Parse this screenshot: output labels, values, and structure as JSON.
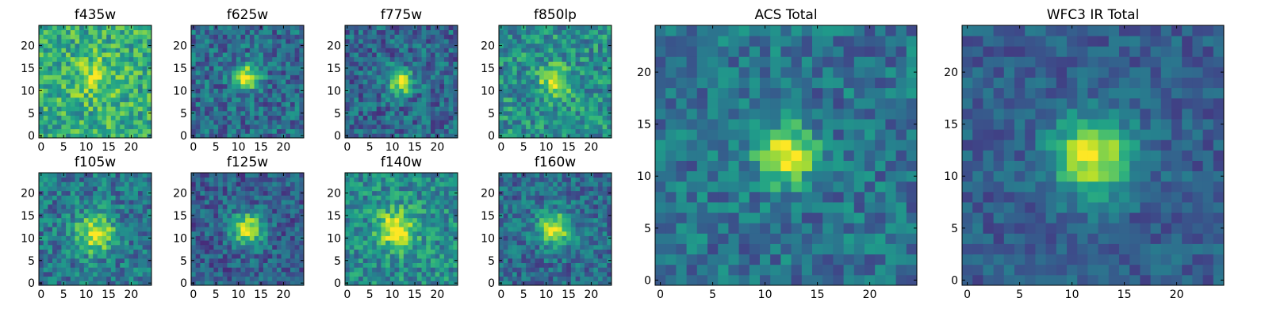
{
  "colormap": "viridis",
  "chart_data": [
    {
      "type": "heatmap",
      "title": "f435w",
      "peak": [
        12,
        13
      ],
      "spread": 3.2,
      "amp": 0.25,
      "base": 0.62,
      "noise": 0.22,
      "xticks": [
        0,
        5,
        10,
        15,
        20
      ],
      "yticks": [
        0,
        5,
        10,
        15,
        20
      ],
      "ylim": [
        -0.5,
        24.5
      ],
      "xlim": [
        -0.5,
        24.5
      ]
    },
    {
      "type": "heatmap",
      "title": "f625w",
      "peak": [
        12,
        13
      ],
      "spread": 2.0,
      "amp": 0.6,
      "base": 0.35,
      "noise": 0.2,
      "xticks": [
        0,
        5,
        10,
        15,
        20
      ],
      "yticks": [
        0,
        5,
        10,
        15,
        20
      ],
      "ylim": [
        -0.5,
        24.5
      ],
      "xlim": [
        -0.5,
        24.5
      ]
    },
    {
      "type": "heatmap",
      "title": "f775w",
      "peak": [
        12,
        12
      ],
      "spread": 2.0,
      "amp": 0.65,
      "base": 0.33,
      "noise": 0.2,
      "xticks": [
        0,
        5,
        10,
        15,
        20
      ],
      "yticks": [
        0,
        5,
        10,
        15,
        20
      ],
      "ylim": [
        -0.5,
        24.5
      ],
      "xlim": [
        -0.5,
        24.5
      ]
    },
    {
      "type": "heatmap",
      "title": "f850lp",
      "peak": [
        12,
        12
      ],
      "spread": 2.4,
      "amp": 0.45,
      "base": 0.5,
      "noise": 0.22,
      "xticks": [
        0,
        5,
        10,
        15,
        20
      ],
      "yticks": [
        0,
        5,
        10,
        15,
        20
      ],
      "ylim": [
        -0.5,
        24.5
      ],
      "xlim": [
        -0.5,
        24.5
      ]
    },
    {
      "type": "heatmap",
      "title": "f105w",
      "peak": [
        12,
        11
      ],
      "spread": 3.0,
      "amp": 0.55,
      "base": 0.4,
      "noise": 0.2,
      "xticks": [
        0,
        5,
        10,
        15,
        20
      ],
      "yticks": [
        0,
        5,
        10,
        15,
        20
      ],
      "ylim": [
        -0.5,
        24.5
      ],
      "xlim": [
        -0.5,
        24.5
      ]
    },
    {
      "type": "heatmap",
      "title": "f125w",
      "peak": [
        12,
        12
      ],
      "spread": 2.6,
      "amp": 0.62,
      "base": 0.3,
      "noise": 0.18,
      "xticks": [
        0,
        5,
        10,
        15,
        20
      ],
      "yticks": [
        0,
        5,
        10,
        15,
        20
      ],
      "ylim": [
        -0.5,
        24.5
      ],
      "xlim": [
        -0.5,
        24.5
      ]
    },
    {
      "type": "heatmap",
      "title": "f140w",
      "peak": [
        11,
        12
      ],
      "spread": 3.0,
      "amp": 0.5,
      "base": 0.48,
      "noise": 0.2,
      "xticks": [
        0,
        5,
        10,
        15,
        20
      ],
      "yticks": [
        0,
        5,
        10,
        15,
        20
      ],
      "ylim": [
        -0.5,
        24.5
      ],
      "xlim": [
        -0.5,
        24.5
      ]
    },
    {
      "type": "heatmap",
      "title": "f160w",
      "peak": [
        12,
        12
      ],
      "spread": 2.6,
      "amp": 0.6,
      "base": 0.35,
      "noise": 0.18,
      "xticks": [
        0,
        5,
        10,
        15,
        20
      ],
      "yticks": [
        0,
        5,
        10,
        15,
        20
      ],
      "ylim": [
        -0.5,
        24.5
      ],
      "xlim": [
        -0.5,
        24.5
      ]
    },
    {
      "type": "heatmap",
      "title": "ACS Total",
      "peak": [
        12,
        12
      ],
      "spread": 2.0,
      "amp": 0.62,
      "base": 0.38,
      "noise": 0.17,
      "xticks": [
        0,
        5,
        10,
        15,
        20
      ],
      "yticks": [
        0,
        5,
        10,
        15,
        20
      ],
      "ylim": [
        -0.5,
        24.5
      ],
      "xlim": [
        -0.5,
        24.5
      ]
    },
    {
      "type": "heatmap",
      "title": "WFC3 IR Total",
      "peak": [
        12,
        12
      ],
      "spread": 2.6,
      "amp": 0.68,
      "base": 0.3,
      "noise": 0.12,
      "xticks": [
        0,
        5,
        10,
        15,
        20
      ],
      "yticks": [
        0,
        5,
        10,
        15,
        20
      ],
      "ylim": [
        -0.5,
        24.5
      ],
      "xlim": [
        -0.5,
        24.5
      ]
    }
  ]
}
